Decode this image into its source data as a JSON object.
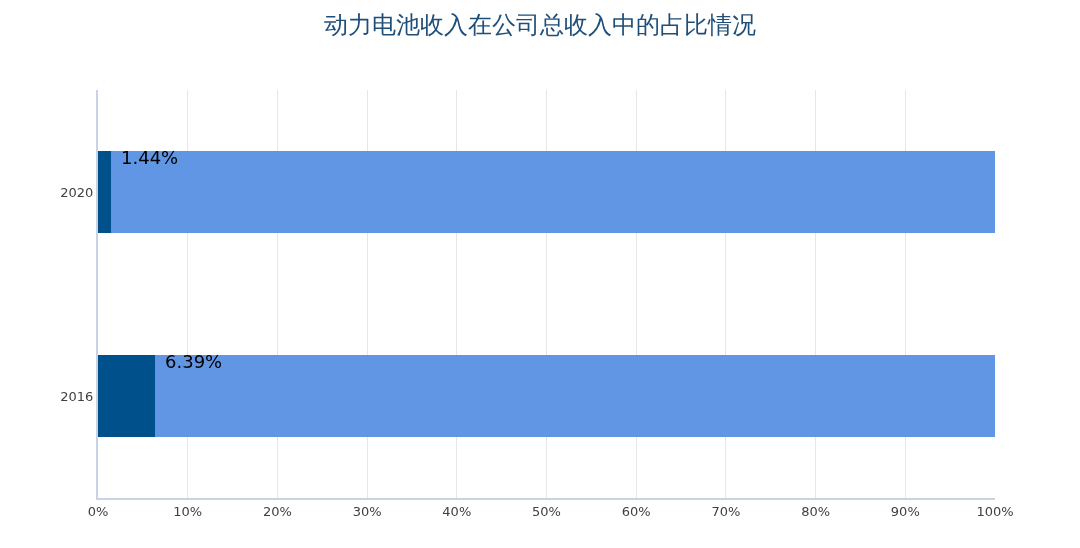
{
  "chart_data": {
    "type": "bar",
    "orientation": "horizontal",
    "stacked": true,
    "title": "动力电池收入在公司总收入中的占比情况",
    "categories": [
      "2020",
      "2016"
    ],
    "series": [
      {
        "color": "#00508c",
        "values": [
          1.44,
          6.39
        ],
        "value_labels": [
          "1.44%",
          "6.39%"
        ]
      },
      {
        "color": "#6096e4",
        "values": [
          98.56,
          93.61
        ]
      }
    ],
    "xlim": [
      0,
      100
    ],
    "xticks": [
      {
        "value": 0,
        "label": "0%"
      },
      {
        "value": 10,
        "label": "10%"
      },
      {
        "value": 20,
        "label": "20%"
      },
      {
        "value": 30,
        "label": "30%"
      },
      {
        "value": 40,
        "label": "40%"
      },
      {
        "value": 50,
        "label": "50%"
      },
      {
        "value": 60,
        "label": "60%"
      },
      {
        "value": 70,
        "label": "70%"
      },
      {
        "value": 80,
        "label": "80%"
      },
      {
        "value": 90,
        "label": "90%"
      },
      {
        "value": 100,
        "label": "100%"
      }
    ],
    "grid": "x"
  }
}
